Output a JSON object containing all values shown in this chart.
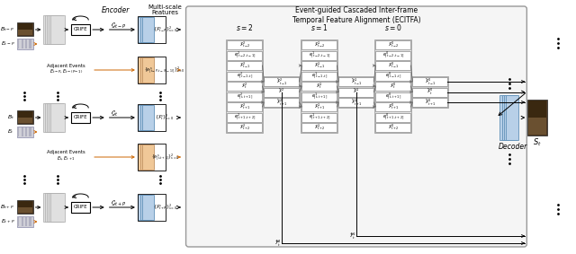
{
  "title": "Event-guided Cascaded Inter-frame\nTemporal Feature Alignment (ECITFA)",
  "white": "#ffffff",
  "gray_bg": "#efefef",
  "gray_col": "#e0e0e0",
  "gray_hat": "#cccccc",
  "blue_feat": "#b8d0e8",
  "orange_feat": "#f0c898",
  "photo_dark": "#3a2a10",
  "photo_mid": "#6a5030",
  "event_bg": "#c8c8d8",
  "arrow_orange": "#cc6600",
  "encoder_label": "Encoder",
  "multiscale_label": "Multi-scale\nFeatures",
  "decoder_label": "Decoder",
  "ecitfa_title": "Event-guided Cascaded Inter-frame\nTemporal Feature Alignment (ECITFA)"
}
